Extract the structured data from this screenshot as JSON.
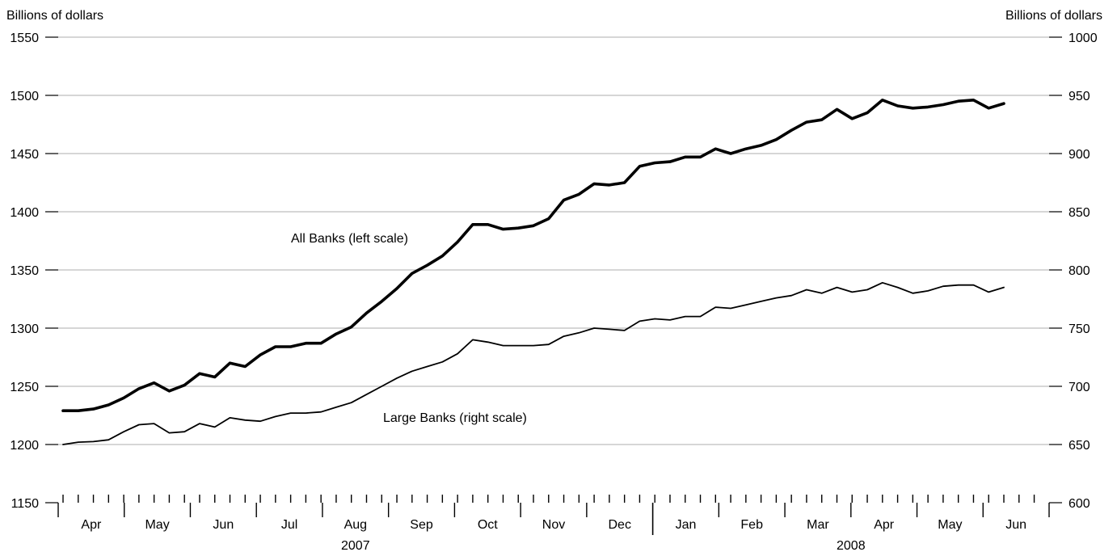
{
  "chart_data": {
    "type": "line",
    "left_axis": {
      "title": "Billions of dollars",
      "range": [
        1150,
        1550
      ],
      "ticks": [
        1150,
        1200,
        1250,
        1300,
        1350,
        1400,
        1450,
        1500,
        1550
      ]
    },
    "right_axis": {
      "title": "Billions of dollars",
      "range": [
        600,
        1000
      ],
      "ticks": [
        600,
        650,
        700,
        750,
        800,
        850,
        900,
        950,
        1000
      ]
    },
    "x_axis": {
      "months": [
        "Apr",
        "May",
        "Jun",
        "Jul",
        "Aug",
        "Sep",
        "Oct",
        "Nov",
        "Dec",
        "Jan",
        "Feb",
        "Mar",
        "Apr",
        "May",
        "Jun"
      ],
      "years": [
        {
          "label": "2007"
        },
        {
          "label": "2008"
        }
      ]
    },
    "grid": "horizontal",
    "series": [
      {
        "name": "All Banks (left scale)",
        "axis": "left",
        "color": "#000000",
        "weight": "heavy",
        "values": [
          1229,
          1229,
          1230.5,
          1234,
          1240,
          1248,
          1253,
          1246,
          1251,
          1261,
          1258,
          1270,
          1267,
          1277,
          1284,
          1284,
          1287,
          1287,
          1295,
          1301,
          1313,
          1323,
          1334,
          1347,
          1354,
          1362,
          1374,
          1389,
          1389,
          1385,
          1386,
          1388,
          1394,
          1410,
          1415,
          1424,
          1423,
          1425,
          1439,
          1442,
          1443,
          1447,
          1447,
          1454,
          1450,
          1454,
          1457,
          1462,
          1470,
          1477,
          1479,
          1488,
          1480,
          1485,
          1496,
          1491,
          1489,
          1490,
          1492,
          1495,
          1496,
          1489,
          1493
        ]
      },
      {
        "name": "Large Banks (right scale)",
        "axis": "right",
        "color": "#000000",
        "weight": "light",
        "values": [
          650,
          652,
          652.5,
          654,
          661,
          667,
          668,
          660,
          661,
          668,
          665,
          673,
          671,
          670,
          674,
          677,
          677,
          678,
          682,
          686,
          693,
          700,
          707,
          713,
          717,
          721,
          728,
          740,
          738,
          735,
          735,
          735,
          736,
          743,
          746,
          750,
          749,
          748,
          756,
          758,
          757,
          760,
          760,
          768,
          767,
          770,
          773,
          776,
          778,
          783,
          780,
          785,
          781,
          783,
          789,
          785,
          780,
          782,
          786,
          787,
          787,
          781,
          785
        ]
      }
    ],
    "annotations": [
      {
        "text": "All Banks (left scale)"
      },
      {
        "text": "Large Banks (right scale)"
      }
    ]
  }
}
